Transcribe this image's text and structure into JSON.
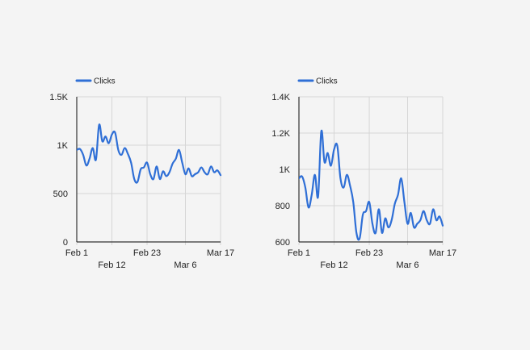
{
  "chart_data": [
    {
      "type": "line",
      "legend": [
        {
          "label": "Clicks",
          "color": "#2f6fd6"
        }
      ],
      "legend_position": "top-left",
      "grid": true,
      "series": [
        {
          "name": "Clicks",
          "color": "#2f6fd6",
          "x": [
            "Feb 1",
            "Feb 2",
            "Feb 3",
            "Feb 4",
            "Feb 5",
            "Feb 6",
            "Feb 7",
            "Feb 8",
            "Feb 9",
            "Feb 10",
            "Feb 11",
            "Feb 12",
            "Feb 13",
            "Feb 14",
            "Feb 15",
            "Feb 16",
            "Feb 17",
            "Feb 18",
            "Feb 19",
            "Feb 20",
            "Feb 21",
            "Feb 22",
            "Feb 23",
            "Feb 24",
            "Feb 25",
            "Feb 26",
            "Feb 27",
            "Feb 28",
            "Feb 29",
            "Mar 1",
            "Mar 2",
            "Mar 3",
            "Mar 4",
            "Mar 5",
            "Mar 6",
            "Mar 7",
            "Mar 8",
            "Mar 9",
            "Mar 10",
            "Mar 11",
            "Mar 12",
            "Mar 13",
            "Mar 14",
            "Mar 15",
            "Mar 16",
            "Mar 17"
          ],
          "values": [
            950,
            960,
            900,
            790,
            860,
            970,
            850,
            1210,
            1040,
            1090,
            1020,
            1110,
            1130,
            950,
            900,
            970,
            910,
            820,
            650,
            620,
            750,
            770,
            820,
            700,
            650,
            780,
            650,
            730,
            680,
            720,
            810,
            860,
            950,
            820,
            700,
            760,
            680,
            700,
            720,
            770,
            720,
            700,
            780,
            720,
            740,
            690
          ]
        }
      ],
      "x_ticks": [
        {
          "label": "Feb 1",
          "index": 0,
          "row": 0
        },
        {
          "label": "Feb 12",
          "index": 11,
          "row": 1
        },
        {
          "label": "Feb 23",
          "index": 22,
          "row": 0
        },
        {
          "label": "Mar 6",
          "index": 34,
          "row": 1
        },
        {
          "label": "Mar 17",
          "index": 45,
          "row": 0
        }
      ],
      "y_ticks": [
        {
          "label": "0",
          "value": 0
        },
        {
          "label": "500",
          "value": 500
        },
        {
          "label": "1K",
          "value": 1000
        },
        {
          "label": "1.5K",
          "value": 1500
        }
      ],
      "ylim": [
        0,
        1500
      ]
    },
    {
      "type": "line",
      "legend": [
        {
          "label": "Clicks",
          "color": "#2f6fd6"
        }
      ],
      "legend_position": "top-left",
      "grid": true,
      "series": [
        {
          "name": "Clicks",
          "color": "#2f6fd6",
          "x": [
            "Feb 1",
            "Feb 2",
            "Feb 3",
            "Feb 4",
            "Feb 5",
            "Feb 6",
            "Feb 7",
            "Feb 8",
            "Feb 9",
            "Feb 10",
            "Feb 11",
            "Feb 12",
            "Feb 13",
            "Feb 14",
            "Feb 15",
            "Feb 16",
            "Feb 17",
            "Feb 18",
            "Feb 19",
            "Feb 20",
            "Feb 21",
            "Feb 22",
            "Feb 23",
            "Feb 24",
            "Feb 25",
            "Feb 26",
            "Feb 27",
            "Feb 28",
            "Feb 29",
            "Mar 1",
            "Mar 2",
            "Mar 3",
            "Mar 4",
            "Mar 5",
            "Mar 6",
            "Mar 7",
            "Mar 8",
            "Mar 9",
            "Mar 10",
            "Mar 11",
            "Mar 12",
            "Mar 13",
            "Mar 14",
            "Mar 15",
            "Mar 16",
            "Mar 17"
          ],
          "values": [
            950,
            960,
            900,
            790,
            860,
            970,
            850,
            1210,
            1040,
            1090,
            1020,
            1110,
            1130,
            950,
            900,
            970,
            910,
            820,
            650,
            620,
            750,
            770,
            820,
            700,
            650,
            780,
            650,
            730,
            680,
            720,
            810,
            860,
            950,
            820,
            700,
            760,
            680,
            700,
            720,
            770,
            720,
            700,
            780,
            720,
            740,
            690
          ]
        }
      ],
      "x_ticks": [
        {
          "label": "Feb 1",
          "index": 0,
          "row": 0
        },
        {
          "label": "Feb 12",
          "index": 11,
          "row": 1
        },
        {
          "label": "Feb 23",
          "index": 22,
          "row": 0
        },
        {
          "label": "Mar 6",
          "index": 34,
          "row": 1
        },
        {
          "label": "Mar 17",
          "index": 45,
          "row": 0
        }
      ],
      "y_ticks": [
        {
          "label": "600",
          "value": 600
        },
        {
          "label": "800",
          "value": 800
        },
        {
          "label": "1K",
          "value": 1000
        },
        {
          "label": "1.2K",
          "value": 1200
        },
        {
          "label": "1.4K",
          "value": 1400
        }
      ],
      "ylim": [
        600,
        1400
      ]
    }
  ]
}
